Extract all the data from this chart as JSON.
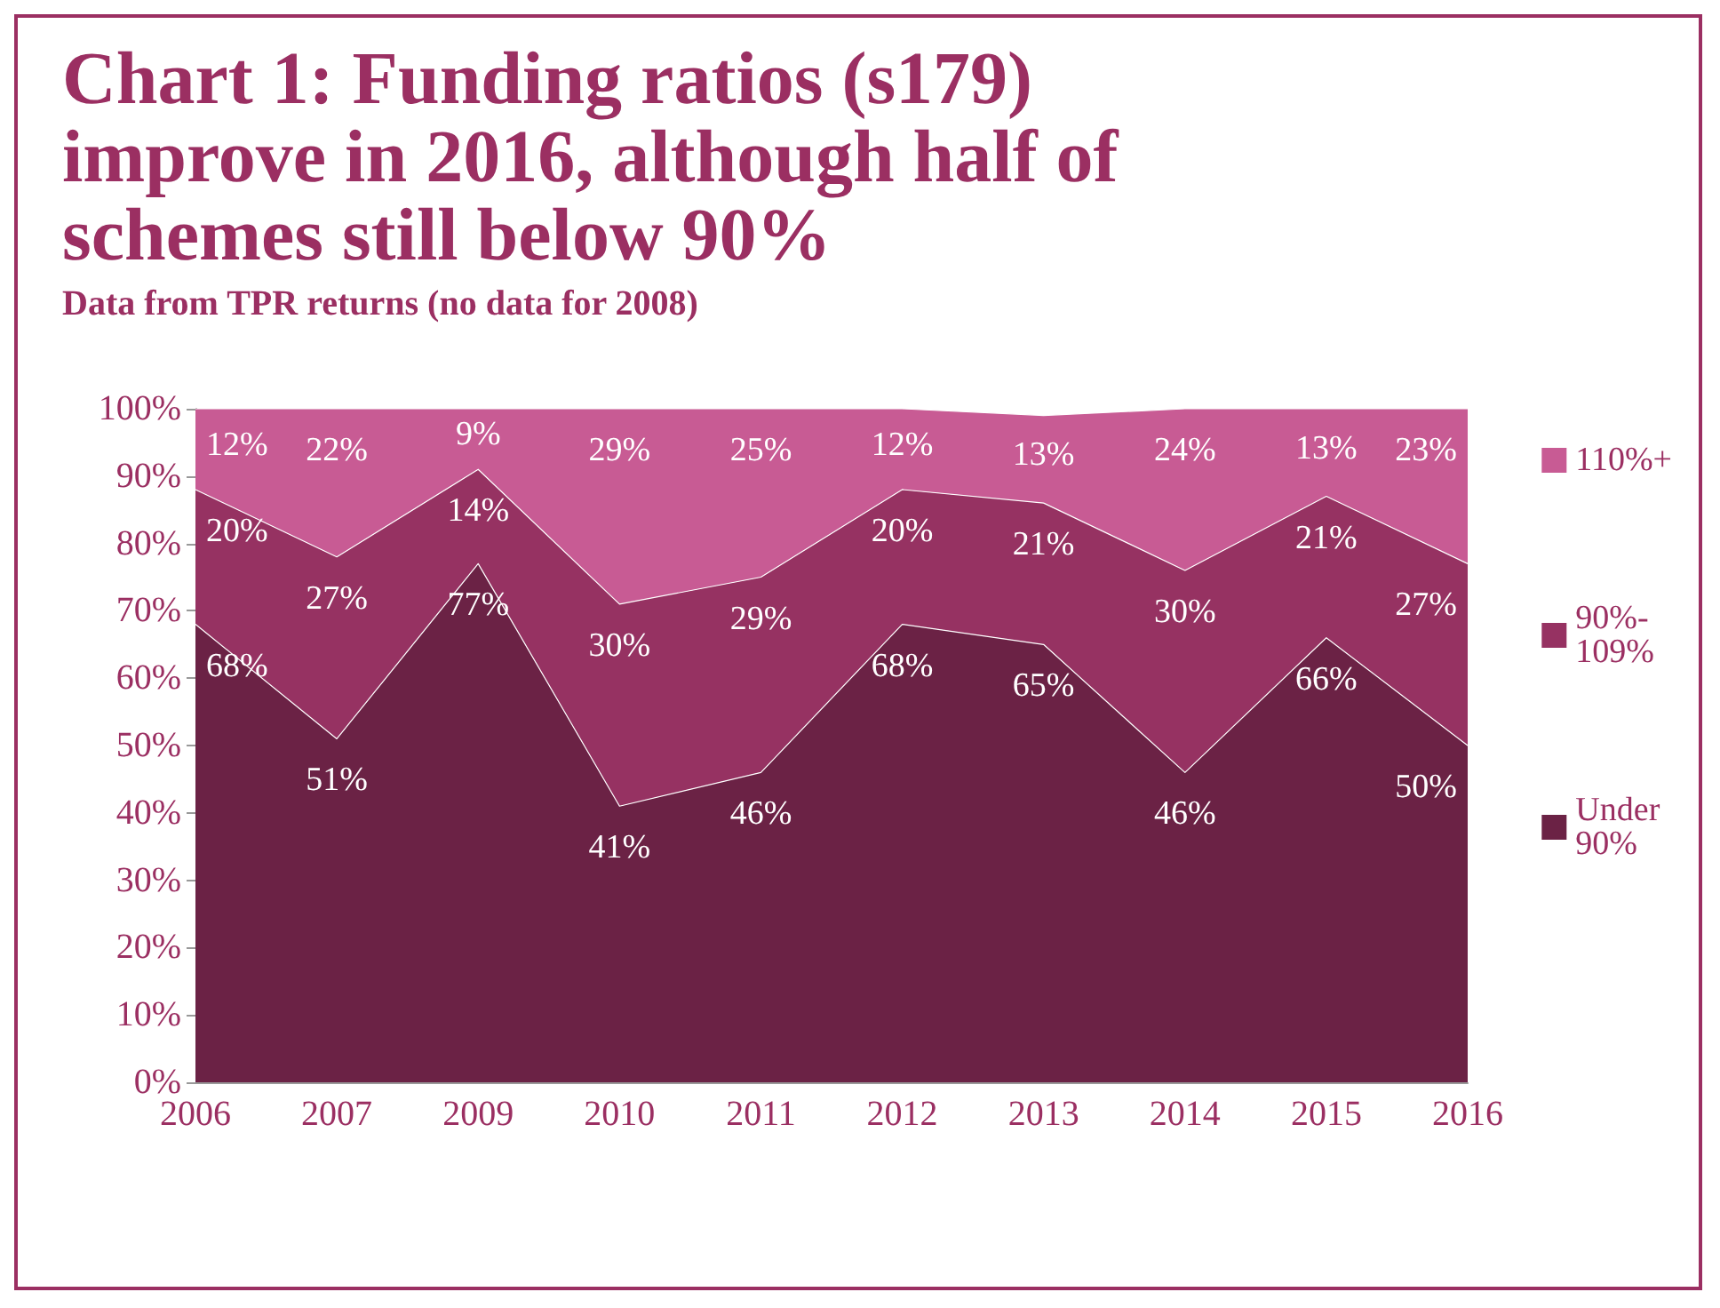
{
  "chart_data": {
    "type": "area",
    "stacked": true,
    "title": "Chart 1: Funding ratios (s179) improve in 2016, although half of schemes still below 90%",
    "subtitle": "Data from TPR returns (no data for 2008)",
    "categories": [
      "2006",
      "2007",
      "2009",
      "2010",
      "2011",
      "2012",
      "2013",
      "2014",
      "2015",
      "2016"
    ],
    "series": [
      {
        "name": "Under 90%",
        "color": "#6b2245",
        "values": [
          68,
          51,
          77,
          41,
          46,
          68,
          65,
          46,
          66,
          50
        ],
        "value_labels": [
          "68%",
          "51%",
          "77%",
          "41%",
          "46%",
          "68%",
          "65%",
          "46%",
          "66%",
          "50%"
        ]
      },
      {
        "name": "90%-109%",
        "color": "#963262",
        "values": [
          20,
          27,
          14,
          30,
          29,
          20,
          21,
          30,
          21,
          27
        ],
        "value_labels": [
          "20%",
          "27%",
          "14%",
          "30%",
          "29%",
          "20%",
          "21%",
          "30%",
          "21%",
          "27%"
        ]
      },
      {
        "name": "110%+",
        "color": "#c85b94",
        "values": [
          12,
          22,
          9,
          29,
          25,
          12,
          13,
          24,
          13,
          23
        ],
        "value_labels": [
          "12%",
          "22%",
          "9%",
          "29%",
          "25%",
          "12%",
          "13%",
          "24%",
          "13%",
          "23%"
        ]
      }
    ],
    "ylim": [
      0,
      100
    ],
    "yticks": [
      {
        "value": 0,
        "label": "0%"
      },
      {
        "value": 10,
        "label": "10%"
      },
      {
        "value": 20,
        "label": "20%"
      },
      {
        "value": 30,
        "label": "30%"
      },
      {
        "value": 40,
        "label": "40%"
      },
      {
        "value": 50,
        "label": "50%"
      },
      {
        "value": 60,
        "label": "60%"
      },
      {
        "value": 70,
        "label": "70%"
      },
      {
        "value": 80,
        "label": "80%"
      },
      {
        "value": 90,
        "label": "90%"
      },
      {
        "value": 100,
        "label": "100%"
      }
    ],
    "legend": "right",
    "grid": false,
    "marker": "none"
  }
}
